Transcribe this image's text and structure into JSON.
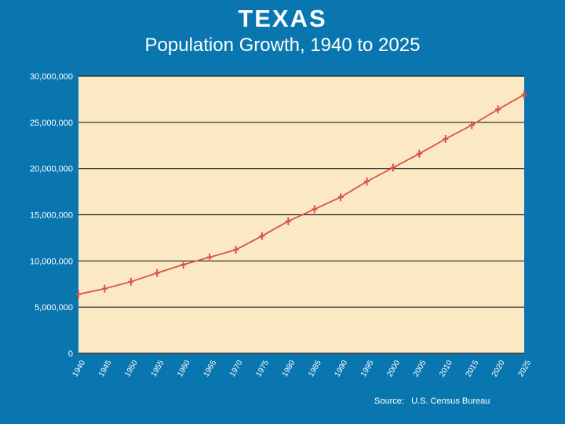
{
  "header": {
    "title": "TEXAS",
    "subtitle": "Population Growth, 1940 to 2025"
  },
  "footer": {
    "source": "Source:   U.S. Census Bureau"
  },
  "colors": {
    "background": "#0a76b0",
    "plot_area": "#fbe8c4",
    "gridline": "#222222",
    "series_line": "#d9534a"
  },
  "chart_data": {
    "type": "line",
    "title": "TEXAS",
    "subtitle": "Population Growth, 1940 to 2025",
    "xlabel": "",
    "ylabel": "",
    "x": [
      1940,
      1945,
      1950,
      1955,
      1960,
      1965,
      1970,
      1975,
      1980,
      1985,
      1990,
      1995,
      2000,
      2005,
      2010,
      2015,
      2020,
      2025
    ],
    "x_tick_labels": [
      "1940",
      "1945",
      "1950",
      "1955",
      "1960",
      "1965",
      "1970",
      "1975",
      "1980",
      "1985",
      "1990",
      "1995",
      "2000",
      "2005",
      "2010",
      "2015",
      "2020",
      "2025"
    ],
    "series": [
      {
        "values": [
          6400000,
          7000000,
          7750000,
          8700000,
          9600000,
          10400000,
          11200000,
          12700000,
          14300000,
          15600000,
          16900000,
          18600000,
          20100000,
          21600000,
          23200000,
          24700000,
          26400000,
          28000000
        ]
      }
    ],
    "ylim": [
      0,
      30000000
    ],
    "y_ticks": [
      0,
      5000000,
      10000000,
      15000000,
      20000000,
      25000000,
      30000000
    ],
    "y_tick_labels": [
      "0",
      "5,000,000",
      "10,000,000",
      "15,000,000",
      "20,000,000",
      "25,000,000",
      "30,000,000"
    ],
    "grid": true,
    "marker": "plus"
  }
}
